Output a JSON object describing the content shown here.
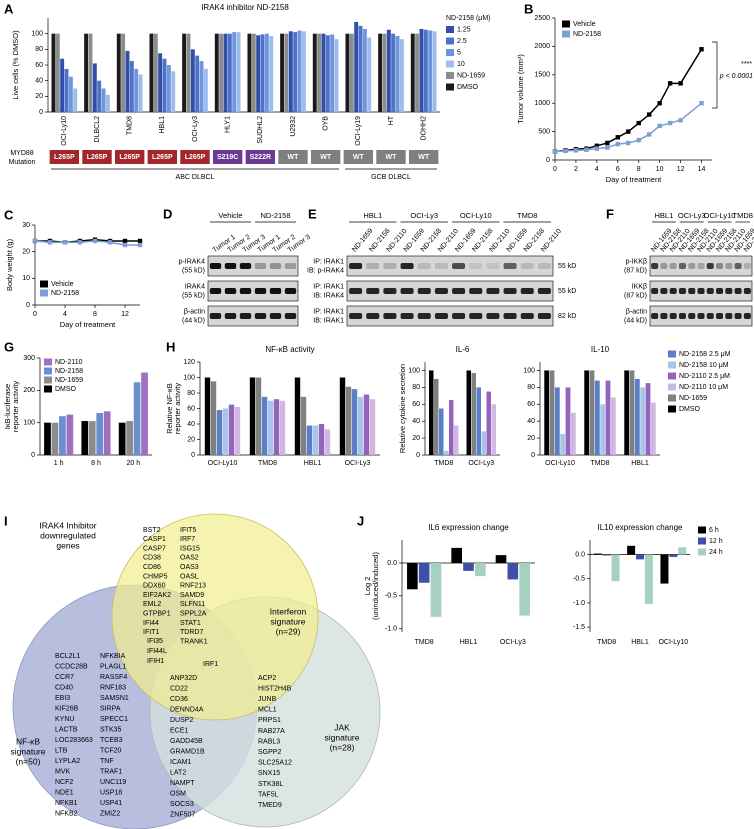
{
  "chart_data": [
    {
      "type": "bar",
      "label": "A",
      "title": "IRAK4 inhibitor ND-2158",
      "ylabel": "Live cells (% DMSO)",
      "categories": [
        "OCI-Ly10",
        "DLBCL2",
        "TMD8",
        "HBL1",
        "OCI-Ly3",
        "HLY1",
        "SUDHL2",
        "U2932",
        "OYB",
        "OCI-Ly19",
        "HT",
        "DOHH2"
      ],
      "series": [
        {
          "name": "DMSO",
          "color": "#1a1a1a",
          "values": [
            100,
            100,
            100,
            100,
            100,
            100,
            100,
            100,
            100,
            100,
            100,
            100
          ]
        },
        {
          "name": "ND-1659",
          "color": "#8c8c8c",
          "values": [
            100,
            100,
            100,
            100,
            100,
            100,
            100,
            100,
            100,
            100,
            100,
            100
          ]
        },
        {
          "name": "1.25",
          "color": "#2f4fa8",
          "values": [
            68,
            62,
            78,
            75,
            80,
            100,
            98,
            103,
            100,
            115,
            105,
            106
          ]
        },
        {
          "name": "2.5",
          "color": "#4f72c8",
          "values": [
            55,
            40,
            65,
            68,
            72,
            100,
            99,
            102,
            98,
            110,
            100,
            105
          ]
        },
        {
          "name": "5",
          "color": "#6e95dd",
          "values": [
            45,
            30,
            55,
            60,
            65,
            102,
            100,
            104,
            99,
            106,
            97,
            104
          ]
        },
        {
          "name": "10",
          "color": "#9dbcec",
          "values": [
            30,
            22,
            48,
            52,
            55,
            102,
            97,
            103,
            93,
            95,
            93,
            103
          ]
        }
      ],
      "ylim": [
        0,
        120
      ],
      "yticks": [
        0,
        20,
        40,
        60,
        80,
        100
      ],
      "legend": "upper right",
      "legend_title": "ND-2158 (μM)",
      "mutation_label": [
        "MYD88",
        "Mutation"
      ],
      "mutations": [
        "L265P",
        "L265P",
        "L265P",
        "L265P",
        "L265P",
        "S219C",
        "S222R",
        "WT",
        "WT",
        "WT",
        "WT",
        "WT"
      ],
      "mutation_colors": {
        "L265P": "#a3262a",
        "S219C": "#6b3b94",
        "S222R": "#6b3b94",
        "WT": "#7f7f7f"
      },
      "subtypes": [
        "ABC DLBCL",
        "ABC DLBCL",
        "ABC DLBCL",
        "ABC DLBCL",
        "ABC DLBCL",
        "ABC DLBCL",
        "ABC DLBCL",
        "ABC DLBCL",
        "ABC DLBCL",
        "GCB DLBCL",
        "GCB DLBCL",
        "GCB DLBCL"
      ]
    },
    {
      "type": "line",
      "label": "B",
      "ylabel": "Tumor volume (mm³)",
      "xlabel": "Day of treatment",
      "x": [
        0,
        1,
        2,
        3,
        4,
        5,
        6,
        7,
        8,
        9,
        10,
        11,
        12,
        14
      ],
      "series": [
        {
          "name": "Vehicle",
          "color": "#000000",
          "values": [
            150,
            170,
            190,
            200,
            250,
            300,
            400,
            500,
            650,
            800,
            1000,
            1350,
            1350,
            1950
          ]
        },
        {
          "name": "ND-2158",
          "color": "#7c9fd8",
          "values": [
            150,
            160,
            170,
            180,
            200,
            220,
            280,
            300,
            350,
            450,
            600,
            650,
            700,
            1000
          ]
        }
      ],
      "xlim": [
        0,
        15
      ],
      "xticks": [
        0,
        2,
        4,
        6,
        8,
        10,
        12,
        14
      ],
      "ylim": [
        0,
        2500
      ],
      "yticks": [
        0,
        500,
        1000,
        1500,
        2000,
        2500
      ],
      "legend": "upper left",
      "annotations": [
        "****",
        "p < 0.0001"
      ]
    },
    {
      "type": "line",
      "label": "C",
      "ylabel": "Body weight (g)",
      "xlabel": "Day of treatment",
      "x": [
        0,
        2,
        4,
        6,
        8,
        10,
        12,
        14
      ],
      "series": [
        {
          "name": "Vehicle",
          "color": "#000000",
          "values": [
            24,
            24,
            23.5,
            24,
            24.5,
            24,
            24,
            24
          ]
        },
        {
          "name": "ND-2158",
          "color": "#7c9fd8",
          "values": [
            24,
            23.5,
            23.5,
            23.5,
            24,
            23.5,
            22.5,
            22.5
          ]
        }
      ],
      "xlim": [
        0,
        14
      ],
      "xticks": [
        0,
        4,
        8,
        12
      ],
      "ylim": [
        0,
        30
      ],
      "yticks": [
        0,
        10,
        20,
        30
      ],
      "legend": "lower left"
    },
    {
      "type": "bar",
      "label": "G",
      "ylabel": [
        "IκB-luciferase",
        "reporter activity"
      ],
      "categories": [
        "1 h",
        "8 h",
        "20 h"
      ],
      "series": [
        {
          "name": "DMSO",
          "color": "#000000",
          "values": [
            100,
            105,
            100
          ]
        },
        {
          "name": "ND-1659",
          "color": "#8c8c8c",
          "values": [
            100,
            105,
            105
          ]
        },
        {
          "name": "ND-2158",
          "color": "#6a8fd0",
          "values": [
            120,
            130,
            225
          ]
        },
        {
          "name": "ND-2110",
          "color": "#a070c0",
          "values": [
            125,
            135,
            255
          ]
        }
      ],
      "ylim": [
        0,
        300
      ],
      "yticks": [
        0,
        100,
        200,
        300
      ],
      "legend": "upper left"
    },
    {
      "type": "bar",
      "label": "H",
      "title": "NF-κB activity",
      "ylabel": [
        "Relative NF-κB",
        "reporter activity"
      ],
      "categories": [
        "OCI-Ly10",
        "TMD8",
        "HBL1",
        "OCI-Ly3"
      ],
      "series": [
        {
          "name": "DMSO",
          "color": "#000000",
          "values": [
            100,
            100,
            100,
            100
          ]
        },
        {
          "name": "ND-1659",
          "color": "#808080",
          "values": [
            95,
            100,
            75,
            88
          ]
        },
        {
          "name": "ND-2158 2.5 μM",
          "color": "#5a7fc8",
          "values": [
            58,
            75,
            38,
            85
          ]
        },
        {
          "name": "ND-2158 10 μM",
          "color": "#a9c4ea",
          "values": [
            60,
            70,
            38,
            75
          ]
        },
        {
          "name": "ND-2110 2.5 μM",
          "color": "#9464bc",
          "values": [
            65,
            72,
            40,
            78
          ]
        },
        {
          "name": "ND-2110 10 μM",
          "color": "#d0b6e0",
          "values": [
            62,
            70,
            33,
            72
          ]
        }
      ],
      "ylim": [
        0,
        120
      ],
      "yticks": [
        0,
        20,
        40,
        60,
        80,
        100,
        120
      ]
    },
    {
      "type": "bar",
      "title": "IL-6",
      "ylabel": "Relative cytokine secretion",
      "categories": [
        "TMD8",
        "OCI-Ly3"
      ],
      "series": [
        {
          "name": "DMSO",
          "color": "#000000",
          "values": [
            100,
            100
          ]
        },
        {
          "name": "ND-1659",
          "color": "#808080",
          "values": [
            90,
            97
          ]
        },
        {
          "name": "ND-2158 2.5 μM",
          "color": "#5a7fc8",
          "values": [
            55,
            80
          ]
        },
        {
          "name": "ND-2158 10 μM",
          "color": "#a9c4ea",
          "values": [
            5,
            28
          ]
        },
        {
          "name": "ND-2110 2.5 μM",
          "color": "#9464bc",
          "values": [
            65,
            75
          ]
        },
        {
          "name": "ND-2110 10 μM",
          "color": "#d0b6e0",
          "values": [
            35,
            60
          ]
        }
      ],
      "ylim": [
        0,
        110
      ],
      "yticks": [
        0,
        20,
        40,
        60,
        80,
        100
      ]
    },
    {
      "type": "bar",
      "title": "IL-10",
      "categories": [
        "OCI-Ly10",
        "TMD8",
        "HBL1"
      ],
      "series": [
        {
          "name": "DMSO",
          "color": "#000000",
          "values": [
            100,
            100,
            100
          ]
        },
        {
          "name": "ND-1659",
          "color": "#808080",
          "values": [
            100,
            100,
            100
          ]
        },
        {
          "name": "ND-2158 2.5 μM",
          "color": "#5a7fc8",
          "values": [
            80,
            88,
            90
          ]
        },
        {
          "name": "ND-2158 10 μM",
          "color": "#a9c4ea",
          "values": [
            25,
            60,
            80
          ]
        },
        {
          "name": "ND-2110 2.5 μM",
          "color": "#9464bc",
          "values": [
            80,
            88,
            85
          ]
        },
        {
          "name": "ND-2110 10 μM",
          "color": "#d0b6e0",
          "values": [
            50,
            68,
            62
          ]
        }
      ],
      "ylim": [
        0,
        110
      ],
      "yticks": [
        0,
        20,
        40,
        60,
        80,
        100
      ],
      "legend": "outside right"
    },
    {
      "type": "bar",
      "label": "J",
      "title": "IL6 expression change",
      "ylabel": [
        "Log 2",
        "(uninduced/induced)"
      ],
      "categories": [
        "TMD8",
        "HBL1",
        "OCI-Ly3"
      ],
      "series": [
        {
          "name": "6 h",
          "color": "#000000",
          "values": [
            -0.4,
            0.23,
            0.12
          ]
        },
        {
          "name": "12 h",
          "color": "#3d4fa8",
          "values": [
            -0.3,
            -0.12,
            -0.25
          ]
        },
        {
          "name": "24 h",
          "color": "#a6d1bf",
          "values": [
            -0.82,
            -0.2,
            -0.8
          ]
        }
      ],
      "ylim": [
        -1.05,
        0.35
      ],
      "yticks": [
        {
          "value": -1.0,
          "label": "-1.0"
        },
        -0.5,
        {
          "value": 0.0,
          "label": "0.0"
        }
      ]
    },
    {
      "type": "bar",
      "title": "IL10 expression change",
      "categories": [
        "TMD8",
        "HBL1",
        "OCI-Ly10"
      ],
      "series": [
        {
          "name": "6 h",
          "color": "#000000",
          "values": [
            0.02,
            0.18,
            -0.6
          ]
        },
        {
          "name": "12 h",
          "color": "#3d4fa8",
          "values": [
            -0.02,
            -0.1,
            -0.05
          ]
        },
        {
          "name": "24 h",
          "color": "#a6d1bf",
          "values": [
            -0.55,
            -1.02,
            0.15
          ]
        }
      ],
      "ylim": [
        -1.6,
        0.3
      ],
      "yticks": [
        -1.5,
        {
          "value": -1.0,
          "label": "-1.0"
        },
        -0.5,
        {
          "value": 0.0,
          "label": "0.0"
        }
      ],
      "legend": "outside right"
    }
  ],
  "blots": [
    {
      "label": "D",
      "groups": [
        {
          "name": "Vehicle",
          "lanes": [
            "Tumor 1",
            "Tumor 2",
            "Tumor 3"
          ]
        },
        {
          "name": "ND-2158",
          "lanes": [
            "Tumor 1",
            "Tumor 2",
            "Tumor 3"
          ]
        }
      ],
      "rows": [
        {
          "name": [
            "p-IRAK4",
            "(55 kD)"
          ]
        },
        {
          "name": [
            "IRAK4",
            "(55 kD)"
          ]
        },
        {
          "name": [
            "β-actin",
            "(44 kD)"
          ]
        }
      ]
    },
    {
      "label": "E",
      "groups": [
        {
          "name": "HBL1",
          "lanes": [
            "ND-1659",
            "ND-2158",
            "ND-2110"
          ]
        },
        {
          "name": "OCI-Ly3",
          "lanes": [
            "ND-1659",
            "ND-2158",
            "ND-2110"
          ]
        },
        {
          "name": "OCI-Ly10",
          "lanes": [
            "ND-1659",
            "ND-2158",
            "ND-2110"
          ]
        },
        {
          "name": "TMD8",
          "lanes": [
            "ND-1659",
            "ND-2158",
            "ND-2110"
          ]
        }
      ],
      "rows": [
        {
          "name": [
            "IP: IRAK1",
            "IB: p-IRAK4"
          ],
          "size": "55 kD"
        },
        {
          "name": [
            "IP: IRAK1",
            "IB: IRAK4"
          ],
          "size": "55 kD"
        },
        {
          "name": [
            "IP: IRAK1",
            "IB: IRAK1"
          ],
          "size": "82 kD"
        }
      ]
    },
    {
      "label": "F",
      "groups": [
        {
          "name": "HBL1",
          "lanes": [
            "ND-1659",
            "ND-2158",
            "ND-2110"
          ]
        },
        {
          "name": "OCI-Ly3",
          "lanes": [
            "ND-1659",
            "ND-2158",
            "ND-2110"
          ]
        },
        {
          "name": "OCI-Ly10",
          "lanes": [
            "ND-1659",
            "ND-2158",
            "ND-2110"
          ]
        },
        {
          "name": "TMD8",
          "lanes": [
            "ND-1659",
            "ND-2158"
          ]
        }
      ],
      "rows": [
        {
          "name": [
            "p-IKKβ",
            "(87 kD)"
          ]
        },
        {
          "name": [
            "IKKβ",
            "(87 kD)"
          ]
        },
        {
          "name": [
            "β-actin",
            "(44 kD)"
          ]
        }
      ]
    }
  ],
  "venn": {
    "label": "I",
    "title": [
      "IRAK4 Inhibitor",
      "downregulated",
      "genes"
    ],
    "sets": [
      [
        "Interferon",
        "signature",
        "(n=29)"
      ],
      [
        "NF-κB",
        "signature",
        "(n=50)"
      ],
      [
        "JAK",
        "signature",
        "(n=28)"
      ]
    ],
    "regions": {
      "interferon_only": [
        [
          "BST2",
          "CASP1",
          "CASP7",
          "CD38",
          "CD86",
          "CHMP5",
          "DDX60",
          "EIF2AK2",
          "EML2",
          "GTPBP1",
          "IFI44",
          "IFIT1"
        ],
        [
          "IFIT5",
          "IRF7",
          "ISG15",
          "OAS2",
          "OAS3",
          "OASL",
          "RNF213",
          "SAMD9",
          "SLFN11",
          "SPPL2A",
          "STAT1",
          "TDRD7",
          "TRANK1"
        ]
      ],
      "interferon_nfkb": [
        [
          "IFI35",
          "IFI44L",
          "IFIH1"
        ]
      ],
      "all_three": [
        [
          "IRF1"
        ]
      ],
      "nfkb_only": [
        [
          "BCL2L1",
          "CCDC28B",
          "CCR7",
          "CD40",
          "EBI3",
          "KIF26B",
          "KYNU",
          "LACTB",
          "LOC283663",
          "LTB",
          "LYPLA2",
          "MVK",
          "NCF2",
          "NDE1",
          "NFKB1",
          "NFKB2"
        ],
        [
          "NFKBIA",
          "PLAGL1",
          "RASSF4",
          "RNF183",
          "SAMSN1",
          "SIRPA",
          "SPECC1",
          "STK35",
          "TCEB3",
          "TCF20",
          "TNF",
          "TRAF1",
          "UNC119",
          "USP18",
          "USP41",
          "ZMIZ2"
        ]
      ],
      "nfkb_jak": [
        [
          "ANP32D",
          "CD22",
          "CD36",
          "DENND4A",
          "DUSP2",
          "ECE1",
          "GADD45B",
          "GRAMD1B",
          "ICAM1",
          "LAT2",
          "NAMPT",
          "OSM",
          "SOCS3",
          "ZNF507"
        ]
      ],
      "jak_only": [
        [
          "ACP2",
          "HIST2H4B",
          "JUNB",
          "MCL1",
          "PRPS1",
          "RAB27A",
          "RABL3",
          "SGPP2",
          "SLC25A12",
          "SNX15",
          "STK38L",
          "TAF5L",
          "TMED9"
        ]
      ]
    }
  }
}
